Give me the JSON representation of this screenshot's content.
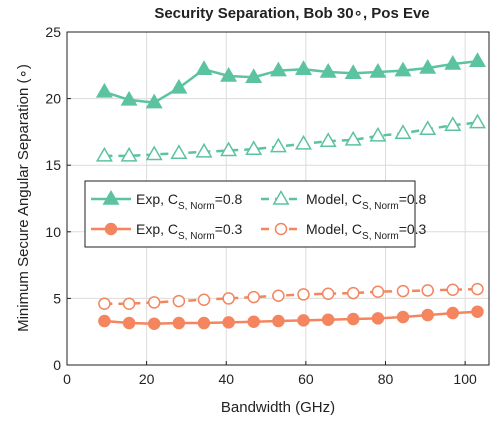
{
  "chart_data": {
    "type": "line",
    "title": "Security Separation, Bob 30∘, Pos Eve",
    "xlabel": "Bandwidth (GHz)",
    "ylabel": "Minimum Secure Angular Separation (∘)",
    "xlim": [
      0,
      106
    ],
    "ylim": [
      0,
      25
    ],
    "xticks": [
      0,
      20,
      40,
      60,
      80,
      100
    ],
    "yticks": [
      0,
      5,
      10,
      15,
      20,
      25
    ],
    "grid": true,
    "legend_placement": "center-left",
    "x": [
      9.4,
      15.6,
      21.9,
      28.1,
      34.4,
      40.6,
      46.9,
      53.1,
      59.4,
      65.6,
      71.9,
      78.1,
      84.4,
      90.6,
      96.9,
      103.1
    ],
    "series": [
      {
        "name": "Exp, C_{S, Norm}=0.8",
        "legend_main": "Exp, C",
        "legend_sub": "S, Norm",
        "legend_tail": "=0.8",
        "color": "#5cc3a0",
        "style": "solid",
        "marker": "triangle-filled",
        "values": [
          20.5,
          19.9,
          19.7,
          20.8,
          22.2,
          21.7,
          21.6,
          22.1,
          22.2,
          22.0,
          21.9,
          22.0,
          22.1,
          22.3,
          22.6,
          22.8
        ]
      },
      {
        "name": "Model, C_{S, Norm}=0.8",
        "legend_main": "Model, C",
        "legend_sub": "S, Norm",
        "legend_tail": "=0.8",
        "color": "#5cc3a0",
        "style": "dashed",
        "marker": "triangle-open",
        "values": [
          15.7,
          15.7,
          15.8,
          15.9,
          16.0,
          16.1,
          16.2,
          16.4,
          16.6,
          16.8,
          16.9,
          17.2,
          17.4,
          17.7,
          18.0,
          18.2
        ]
      },
      {
        "name": "Exp, C_{S, Norm}=0.3",
        "legend_main": "Exp, C",
        "legend_sub": "S, Norm",
        "legend_tail": "=0.3",
        "color": "#f4855f",
        "style": "solid",
        "marker": "circle-filled",
        "values": [
          3.3,
          3.15,
          3.1,
          3.15,
          3.15,
          3.2,
          3.25,
          3.3,
          3.35,
          3.4,
          3.45,
          3.5,
          3.6,
          3.75,
          3.9,
          4.0
        ]
      },
      {
        "name": "Model, C_{S, Norm}=0.3",
        "legend_main": "Model, C",
        "legend_sub": "S, Norm",
        "legend_tail": "=0.3",
        "color": "#f4855f",
        "style": "dashed",
        "marker": "circle-open",
        "values": [
          4.6,
          4.6,
          4.7,
          4.8,
          4.9,
          5.0,
          5.1,
          5.2,
          5.3,
          5.35,
          5.4,
          5.5,
          5.55,
          5.6,
          5.65,
          5.7
        ]
      }
    ]
  }
}
